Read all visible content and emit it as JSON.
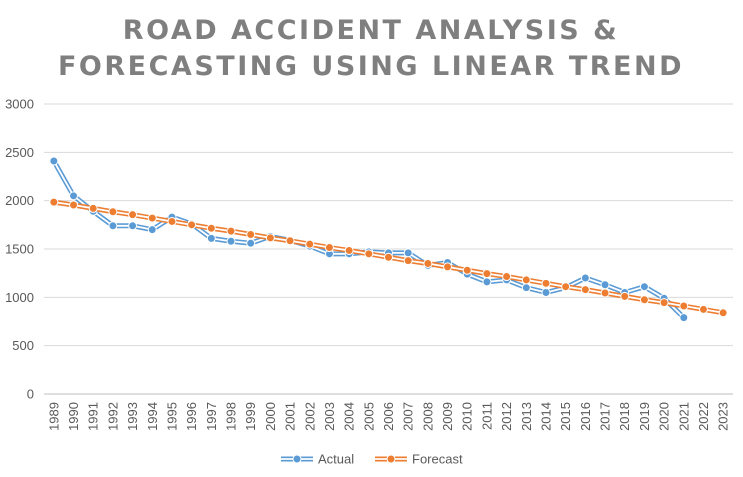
{
  "chart_data": {
    "type": "line",
    "title_lines": [
      "ROAD ACCIDENT ANALYSIS &",
      "FORECASTING USING LINEAR TREND"
    ],
    "xlabel": "",
    "ylabel": "",
    "ylim": [
      0,
      3000
    ],
    "y_ticks": [
      "0",
      "500",
      "1000",
      "1500",
      "2000",
      "2500",
      "3000"
    ],
    "grid": true,
    "legend_position": "bottom",
    "categories": [
      "1989",
      "1990",
      "1991",
      "1992",
      "1993",
      "1994",
      "1995",
      "1996",
      "1997",
      "1998",
      "1999",
      "2000",
      "2001",
      "2002",
      "2003",
      "2004",
      "2005",
      "2006",
      "2007",
      "2008",
      "2009",
      "2010",
      "2011",
      "2012",
      "2013",
      "2014",
      "2015",
      "2016",
      "2017",
      "2018",
      "2019",
      "2020",
      "2021",
      "2022",
      "2023"
    ],
    "series": [
      {
        "name": "Actual",
        "color": "#5b9bd5",
        "values": [
          2410,
          2050,
          1890,
          1740,
          1740,
          1700,
          1830,
          1760,
          1610,
          1580,
          1560,
          1630,
          1590,
          1530,
          1450,
          1450,
          1470,
          1460,
          1460,
          1330,
          1360,
          1240,
          1160,
          1180,
          1100,
          1050,
          1100,
          1200,
          1130,
          1050,
          1110,
          990,
          790,
          null,
          null
        ]
      },
      {
        "name": "Forecast",
        "color": "#ed7d31",
        "values": [
          1985,
          1955,
          1920,
          1885,
          1855,
          1820,
          1785,
          1750,
          1715,
          1685,
          1650,
          1615,
          1585,
          1550,
          1515,
          1485,
          1450,
          1415,
          1380,
          1350,
          1315,
          1280,
          1245,
          1215,
          1180,
          1145,
          1110,
          1080,
          1045,
          1010,
          975,
          945,
          910,
          875,
          840
        ]
      }
    ]
  }
}
